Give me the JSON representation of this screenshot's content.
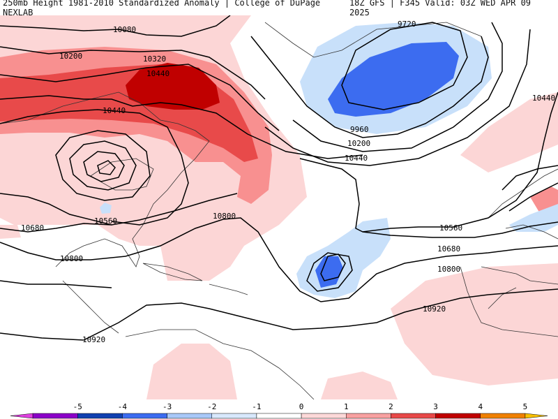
{
  "header": {
    "title": "250mb Height 1981-2010 Standardized Anomaly | College of DuPage NEXLAB",
    "valid": "18Z GFS | F345 Valid: 03Z WED APR 09 2025"
  },
  "contour_labels": [
    "10080",
    "10200",
    "10320",
    "10440",
    "10440",
    "10560",
    "10680",
    "10800",
    "10800",
    "10920",
    "9720",
    "9960",
    "10200",
    "10440",
    "10560",
    "10680",
    "10800",
    "10920",
    "10440"
  ],
  "colorbar": {
    "ticks": [
      "-5",
      "-4",
      "-3",
      "-2",
      "-1",
      "0",
      "1",
      "2",
      "3",
      "4",
      "5"
    ],
    "colors": [
      "#e040e0",
      "#8b00c8",
      "#1040b0",
      "#3c6cf0",
      "#a8c8f8",
      "#d8e8fc",
      "#ffffff",
      "#fcd8d8",
      "#f8a0a0",
      "#e84848",
      "#c00000",
      "#f08000",
      "#f8c000"
    ]
  },
  "palette": {
    "neg1": "#c8e0fa",
    "neg2": "#3c6cf0",
    "pos1": "#fcd6d6",
    "pos2": "#f89090",
    "pos3": "#e84a4a",
    "pos4": "#c00000",
    "contour": "#000000",
    "coast": "#333333"
  }
}
